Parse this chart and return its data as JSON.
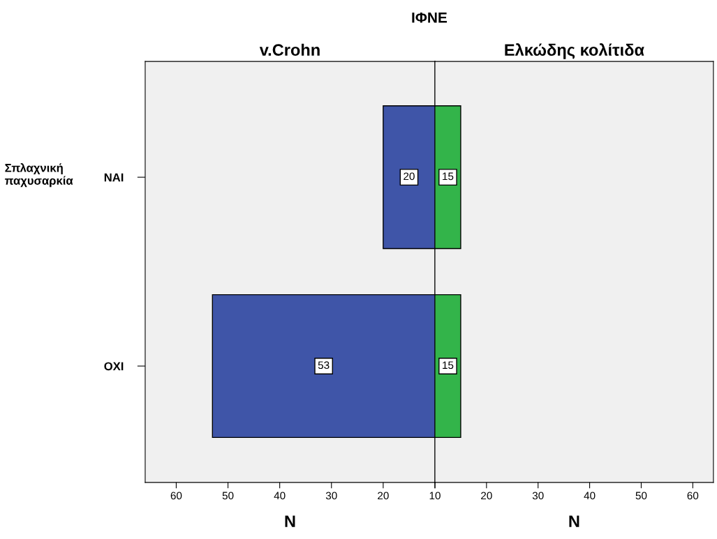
{
  "chart_data": [
    {
      "type": "bar",
      "orientation": "horizontal",
      "title": "v.Crohn",
      "annotations": [
        "ΙΦΝΕ"
      ],
      "ylabel": "Σπλαχνική\nπαχυσαρκία",
      "xlabel": "N",
      "categories": [
        "ΝΑΙ",
        "ΟΧΙ"
      ],
      "series": [
        {
          "color": "#3f55a8",
          "values": [
            20,
            53
          ]
        }
      ],
      "xlim": [
        66,
        10
      ],
      "xticks": [
        60,
        50,
        40,
        30,
        20,
        10
      ],
      "data_labels": true,
      "grid": false,
      "legend": false
    },
    {
      "type": "bar",
      "orientation": "horizontal",
      "title": "Ελκώδης κολίτιδα",
      "xlabel": "N",
      "categories": [
        null,
        null
      ],
      "series": [
        {
          "color": "#33b44a",
          "values": [
            15,
            15
          ]
        }
      ],
      "xlim": [
        10,
        64
      ],
      "xticks": [
        {
          "value": 10,
          "label": null
        },
        20,
        30,
        40,
        50,
        60
      ],
      "tick_labels": "x",
      "data_labels": true,
      "grid": false,
      "legend": false
    }
  ]
}
